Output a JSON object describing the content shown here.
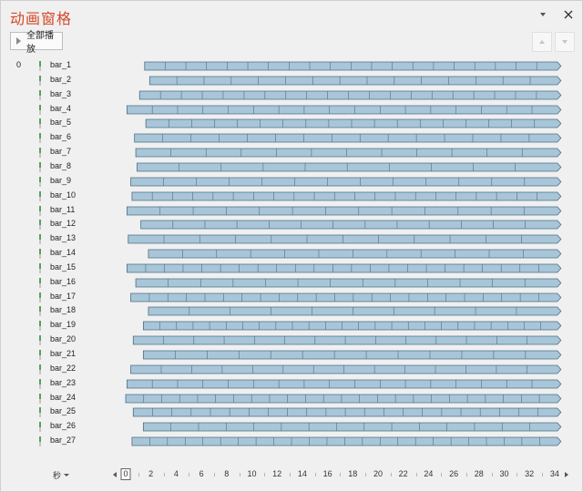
{
  "window": {
    "title": "动画窗格",
    "dropdown_icon": "chevron-down-icon",
    "close_icon": "close-icon"
  },
  "toolbar": {
    "play_all_label": "全部播放",
    "move_up_icon": "arrow-up-icon",
    "move_down_icon": "arrow-down-icon"
  },
  "group_index": "0",
  "colors": {
    "title": "#d2492a",
    "bar_fill": "#a9c6d8",
    "bar_stroke": "#4a6f86",
    "trigger_marker": "#56a05a"
  },
  "timeline": {
    "unit_label": "秒",
    "labels": [
      "0",
      "2",
      "4",
      "6",
      "8",
      "10",
      "12",
      "14",
      "16",
      "18",
      "20",
      "22",
      "24",
      "26",
      "28",
      "30",
      "32",
      "34"
    ],
    "current_position": "0"
  },
  "animations": [
    {
      "name": "bar_1",
      "start": 1.5,
      "segments": 20
    },
    {
      "name": "bar_2",
      "start": 1.9,
      "segments": 15
    },
    {
      "name": "bar_3",
      "start": 1.1,
      "segments": 20
    },
    {
      "name": "bar_4",
      "start": 0.1,
      "segments": 17
    },
    {
      "name": "bar_5",
      "start": 1.6,
      "segments": 18
    },
    {
      "name": "bar_6",
      "start": 0.7,
      "segments": 15
    },
    {
      "name": "bar_7",
      "start": 0.8,
      "segments": 12
    },
    {
      "name": "bar_8",
      "start": 0.9,
      "segments": 10
    },
    {
      "name": "bar_9",
      "start": 0.4,
      "segments": 13
    },
    {
      "name": "bar_10",
      "start": 0.5,
      "segments": 21
    },
    {
      "name": "bar_11",
      "start": 0.1,
      "segments": 13
    },
    {
      "name": "bar_12",
      "start": 1.2,
      "segments": 13
    },
    {
      "name": "bar_13",
      "start": 0.2,
      "segments": 12
    },
    {
      "name": "bar_14",
      "start": 1.8,
      "segments": 12
    },
    {
      "name": "bar_15",
      "start": 0.1,
      "segments": 23
    },
    {
      "name": "bar_16",
      "start": 0.8,
      "segments": 13
    },
    {
      "name": "bar_17",
      "start": 0.4,
      "segments": 23
    },
    {
      "name": "bar_18",
      "start": 1.8,
      "segments": 10
    },
    {
      "name": "bar_19",
      "start": 1.4,
      "segments": 25
    },
    {
      "name": "bar_20",
      "start": 0.6,
      "segments": 14
    },
    {
      "name": "bar_21",
      "start": 1.4,
      "segments": 13
    },
    {
      "name": "bar_22",
      "start": 0.4,
      "segments": 14
    },
    {
      "name": "bar_23",
      "start": 0.1,
      "segments": 17
    },
    {
      "name": "bar_24",
      "start": 0.0,
      "segments": 24
    },
    {
      "name": "bar_25",
      "start": 0.6,
      "segments": 22
    },
    {
      "name": "bar_26",
      "start": 1.4,
      "segments": 15
    },
    {
      "name": "bar_27",
      "start": 0.5,
      "segments": 24
    }
  ]
}
